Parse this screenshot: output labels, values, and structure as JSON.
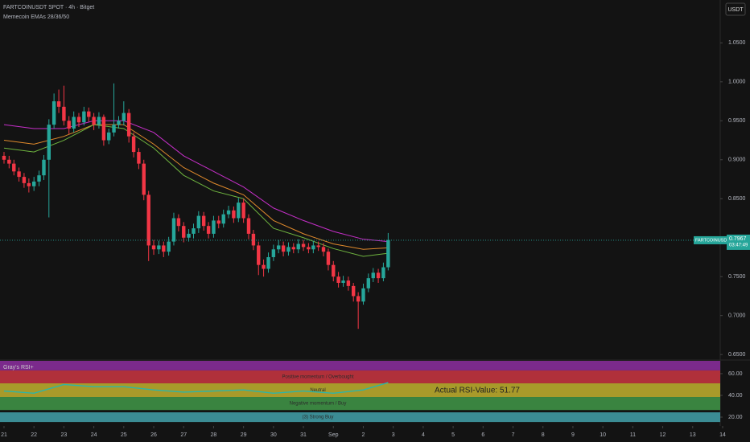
{
  "chart_data": [
    {
      "type": "candlestick",
      "title": "FARTCOINUSDT SPOT · 4h · Bitget",
      "subtitle": "Memecoin EMAs 28/36/50",
      "currency": "USDT",
      "up_color": "#26a69a",
      "down_color": "#f23645",
      "x": [
        0,
        0.17,
        0.33,
        0.5,
        0.67,
        0.83,
        1,
        1.17,
        1.33,
        1.5,
        1.67,
        1.83,
        2,
        2.17,
        2.33,
        2.5,
        2.67,
        2.83,
        3,
        3.17,
        3.33,
        3.5,
        3.67,
        3.83,
        4,
        4.17,
        4.33,
        4.5,
        4.67,
        4.83,
        5,
        5.17,
        5.33,
        5.5,
        5.67,
        5.83,
        6,
        6.17,
        6.33,
        6.5,
        6.67,
        6.83,
        7,
        7.17,
        7.33,
        7.5,
        7.67,
        7.83,
        8,
        8.17,
        8.33,
        8.5,
        8.67,
        8.83,
        9,
        9.17,
        9.33,
        9.5,
        9.67,
        9.83,
        10,
        10.17,
        10.33,
        10.5,
        10.67,
        10.83,
        11,
        11.17,
        11.33,
        11.5,
        11.67,
        11.83,
        12,
        12.17,
        12.33,
        12.5,
        12.67,
        12.83
      ],
      "open": [
        0.905,
        0.9,
        0.895,
        0.885,
        0.878,
        0.87,
        0.866,
        0.872,
        0.88,
        0.9,
        0.945,
        0.975,
        0.968,
        0.95,
        0.94,
        0.955,
        0.948,
        0.962,
        0.955,
        0.945,
        0.955,
        0.925,
        0.935,
        0.945,
        0.95,
        0.96,
        0.93,
        0.91,
        0.895,
        0.855,
        0.79,
        0.785,
        0.79,
        0.782,
        0.795,
        0.825,
        0.815,
        0.8,
        0.805,
        0.812,
        0.828,
        0.815,
        0.805,
        0.822,
        0.818,
        0.83,
        0.835,
        0.825,
        0.845,
        0.825,
        0.805,
        0.79,
        0.765,
        0.76,
        0.775,
        0.785,
        0.79,
        0.782,
        0.788,
        0.785,
        0.792,
        0.788,
        0.785,
        0.79,
        0.788,
        0.782,
        0.765,
        0.75,
        0.742,
        0.745,
        0.738,
        0.725,
        0.718,
        0.735,
        0.748,
        0.755,
        0.748,
        0.762
      ],
      "high": [
        0.91,
        0.905,
        0.9,
        0.89,
        0.883,
        0.876,
        0.878,
        0.886,
        0.906,
        0.952,
        0.985,
        0.99,
        0.995,
        0.956,
        0.962,
        0.96,
        0.968,
        0.967,
        0.96,
        0.961,
        0.958,
        0.94,
        0.998,
        0.956,
        0.975,
        0.965,
        0.935,
        0.915,
        0.9,
        0.86,
        0.797,
        0.796,
        0.795,
        0.801,
        0.832,
        0.83,
        0.82,
        0.811,
        0.818,
        0.834,
        0.833,
        0.82,
        0.828,
        0.828,
        0.836,
        0.841,
        0.84,
        0.851,
        0.85,
        0.83,
        0.81,
        0.795,
        0.772,
        0.781,
        0.791,
        0.797,
        0.795,
        0.794,
        0.793,
        0.798,
        0.797,
        0.793,
        0.796,
        0.795,
        0.793,
        0.786,
        0.77,
        0.756,
        0.751,
        0.75,
        0.742,
        0.73,
        0.741,
        0.754,
        0.761,
        0.76,
        0.768,
        0.806
      ],
      "low": [
        0.895,
        0.889,
        0.88,
        0.872,
        0.864,
        0.858,
        0.86,
        0.866,
        0.874,
        0.826,
        0.94,
        0.96,
        0.944,
        0.933,
        0.935,
        0.942,
        0.944,
        0.949,
        0.938,
        0.94,
        0.918,
        0.92,
        0.93,
        0.94,
        0.944,
        0.922,
        0.903,
        0.888,
        0.848,
        0.77,
        0.778,
        0.779,
        0.775,
        0.777,
        0.79,
        0.808,
        0.794,
        0.795,
        0.799,
        0.806,
        0.809,
        0.799,
        0.8,
        0.812,
        0.813,
        0.825,
        0.819,
        0.82,
        0.819,
        0.798,
        0.784,
        0.752,
        0.75,
        0.755,
        0.77,
        0.78,
        0.776,
        0.777,
        0.78,
        0.78,
        0.783,
        0.78,
        0.78,
        0.783,
        0.776,
        0.758,
        0.744,
        0.736,
        0.737,
        0.732,
        0.718,
        0.683,
        0.714,
        0.73,
        0.743,
        0.742,
        0.744,
        0.758
      ],
      "close": [
        0.9,
        0.895,
        0.885,
        0.878,
        0.87,
        0.866,
        0.872,
        0.88,
        0.9,
        0.945,
        0.975,
        0.968,
        0.95,
        0.94,
        0.955,
        0.948,
        0.962,
        0.955,
        0.945,
        0.955,
        0.925,
        0.935,
        0.945,
        0.95,
        0.96,
        0.93,
        0.91,
        0.895,
        0.855,
        0.79,
        0.785,
        0.79,
        0.782,
        0.795,
        0.825,
        0.815,
        0.8,
        0.805,
        0.812,
        0.828,
        0.815,
        0.805,
        0.822,
        0.818,
        0.83,
        0.835,
        0.825,
        0.845,
        0.825,
        0.805,
        0.79,
        0.765,
        0.76,
        0.775,
        0.785,
        0.79,
        0.782,
        0.788,
        0.785,
        0.792,
        0.788,
        0.785,
        0.79,
        0.788,
        0.782,
        0.765,
        0.75,
        0.742,
        0.745,
        0.738,
        0.725,
        0.718,
        0.735,
        0.748,
        0.755,
        0.748,
        0.762,
        0.797
      ],
      "line_x": [
        0,
        1,
        2,
        3,
        4,
        5,
        6,
        7,
        8,
        9,
        10,
        11,
        12,
        12.83
      ],
      "lines": [
        {
          "color": "#c62fc9",
          "values": [
            0.945,
            0.94,
            0.94,
            0.95,
            0.95,
            0.935,
            0.905,
            0.885,
            0.865,
            0.838,
            0.822,
            0.808,
            0.798,
            0.795
          ]
        },
        {
          "color": "#e08a2c",
          "values": [
            0.925,
            0.92,
            0.93,
            0.945,
            0.945,
            0.92,
            0.89,
            0.87,
            0.855,
            0.822,
            0.805,
            0.792,
            0.785,
            0.787
          ]
        },
        {
          "color": "#6fb43f",
          "values": [
            0.915,
            0.91,
            0.925,
            0.945,
            0.94,
            0.915,
            0.88,
            0.86,
            0.85,
            0.812,
            0.8,
            0.786,
            0.776,
            0.78
          ]
        }
      ],
      "last_price": {
        "symbol": "FARTCOINUSDT",
        "value": 0.7967,
        "countdown": "03:47:49"
      },
      "xlim": [
        -0.134,
        23.92
      ],
      "xticks": [
        {
          "value": 0,
          "label": "21"
        },
        {
          "value": 1,
          "label": "22"
        },
        {
          "value": 2,
          "label": "23"
        },
        {
          "value": 3,
          "label": "24"
        },
        {
          "value": 4,
          "label": "25"
        },
        {
          "value": 5,
          "label": "26"
        },
        {
          "value": 6,
          "label": "27"
        },
        {
          "value": 7,
          "label": "28"
        },
        {
          "value": 8,
          "label": "29"
        },
        {
          "value": 9,
          "label": "30"
        },
        {
          "value": 10,
          "label": "31"
        },
        {
          "value": 11,
          "label": "Sep"
        },
        {
          "value": 12,
          "label": "2"
        },
        {
          "value": 13,
          "label": "3"
        },
        {
          "value": 14,
          "label": "4"
        },
        {
          "value": 15,
          "label": "5"
        },
        {
          "value": 16,
          "label": "6"
        },
        {
          "value": 17,
          "label": "7"
        },
        {
          "value": 18,
          "label": "8"
        },
        {
          "value": 19,
          "label": "9"
        },
        {
          "value": 20,
          "label": "10"
        },
        {
          "value": 21,
          "label": "11"
        },
        {
          "value": 22,
          "label": "12"
        },
        {
          "value": 23,
          "label": "13"
        },
        {
          "value": 24,
          "label": "14"
        }
      ],
      "ylim": [
        0.644,
        1.105
      ],
      "yticks": [
        {
          "value": 0.65,
          "label": "0.6500"
        },
        {
          "value": 0.7,
          "label": "0.7000"
        },
        {
          "value": 0.75,
          "label": "0.7500"
        },
        {
          "value": 0.8,
          "label": "0.8000"
        },
        {
          "value": 0.85,
          "label": "0.8500"
        },
        {
          "value": 0.9,
          "label": "0.9000"
        },
        {
          "value": 0.95,
          "label": "0.9500"
        },
        {
          "value": 1.0,
          "label": "1.0000"
        },
        {
          "value": 1.05,
          "label": "1.0500"
        }
      ]
    },
    {
      "type": "line",
      "title": "Gray's RSI+",
      "color": "#2cb5a8",
      "x": [
        0,
        1,
        2,
        3,
        4,
        5,
        6,
        7,
        8,
        9,
        10,
        11,
        12,
        12.83
      ],
      "values": [
        44,
        42,
        50,
        48,
        48,
        45,
        43,
        44,
        45,
        42,
        44,
        42,
        45,
        51.77
      ],
      "readout": "Actual RSI-Value: 51.77",
      "bands": [
        {
          "from": 62.96,
          "to": 71.8,
          "color": "#7b2a8c"
        },
        {
          "from": 51.1,
          "to": 62.96,
          "color": "#b0303a",
          "label": "Positive momentum / Overbought"
        },
        {
          "from": 38.5,
          "to": 51.1,
          "color": "#a89a2a",
          "label": "Neutral"
        },
        {
          "from": 26.5,
          "to": 38.5,
          "color": "#3a8440",
          "label": "Negative momentum / Buy"
        },
        {
          "from": 15.5,
          "to": 24.4,
          "color": "#3b8c94",
          "label": "(3) Strong Buy"
        }
      ],
      "ylim": [
        14.1,
        71.8
      ],
      "yticks": [
        {
          "value": 20,
          "label": "20.00"
        },
        {
          "value": 40,
          "label": "40.00"
        },
        {
          "value": 60,
          "label": "60.00"
        }
      ]
    }
  ]
}
